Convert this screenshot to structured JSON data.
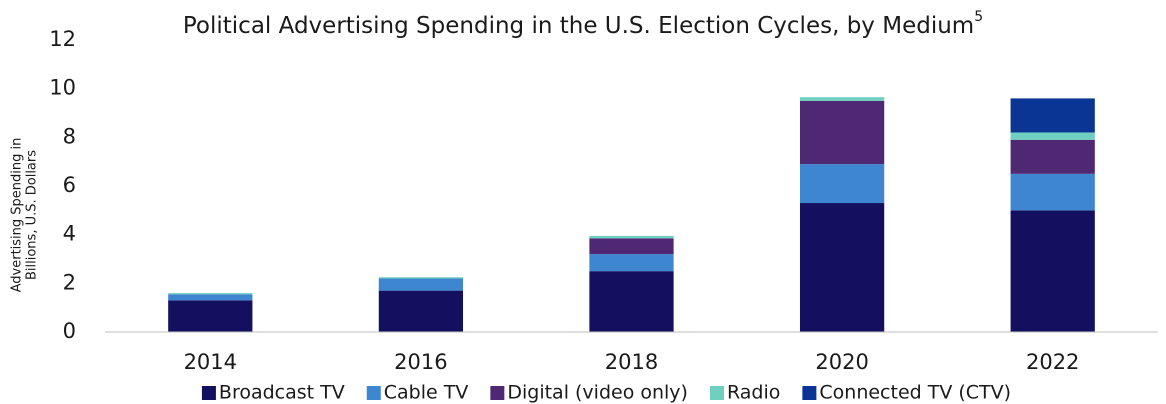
{
  "chart_data": {
    "type": "stacked_bar",
    "title": "Political Advertising Spending in the U.S. Election Cycles, by Medium",
    "title_note": "5",
    "ylabel": [
      "Advertising Spending in",
      "Billions, U.S. Dollars"
    ],
    "categories": [
      "2014",
      "2016",
      "2018",
      "2020",
      "2022"
    ],
    "series": [
      {
        "name": "Broadcast TV",
        "color": "#13105f",
        "values": [
          1.3,
          1.7,
          2.5,
          5.3,
          5.0
        ]
      },
      {
        "name": "Cable TV",
        "color": "#3f86d0",
        "values": [
          0.25,
          0.5,
          0.7,
          1.6,
          1.5
        ]
      },
      {
        "name": "Digital (video only)",
        "color": "#4f2874",
        "values": [
          0,
          0,
          0.65,
          2.6,
          1.4
        ]
      },
      {
        "name": "Radio",
        "color": "#6fd0c0",
        "values": [
          0.05,
          0.05,
          0.1,
          0.15,
          0.3
        ]
      },
      {
        "name": "Connected TV (CTV)",
        "color": "#0b3594",
        "values": [
          0,
          0,
          0,
          0,
          1.4
        ]
      }
    ],
    "ylim": [
      0,
      12
    ],
    "yticks": [
      0,
      2,
      4,
      6,
      8,
      10,
      12
    ],
    "grid": false,
    "legend": "bottom"
  }
}
